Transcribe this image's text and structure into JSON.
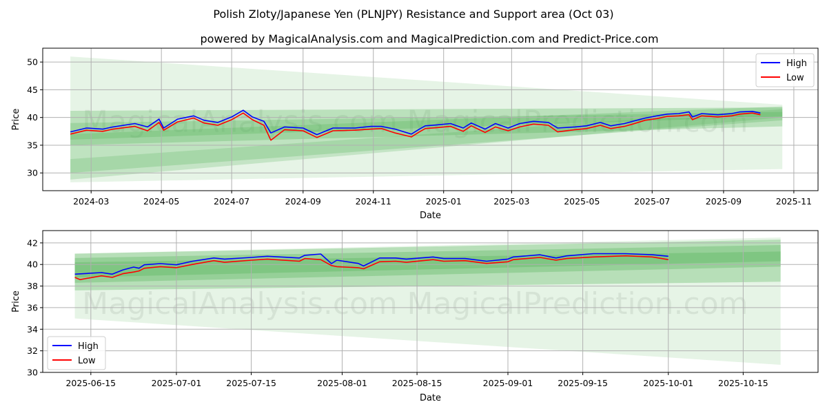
{
  "title": "Polish Zloty/Japanese Yen (PLNJPY) Resistance and Support area (Oct 03)",
  "subtitle": "powered by MagicalAnalysis.com and MagicalPrediction.com and Predict-Price.com",
  "colors": {
    "high": "#0000ff",
    "low": "#ff0000",
    "band": "#4caf50",
    "grid": "#b0b0b0"
  },
  "chart_data": [
    {
      "type": "line",
      "xlabel": "Date",
      "ylabel": "Price",
      "ylim": [
        26.8,
        52.5
      ],
      "xlim": [
        "2024-01-19",
        "2025-11-22"
      ],
      "yticks": [
        30,
        35,
        40,
        45,
        50
      ],
      "xticks": [
        "2024-03",
        "2024-05",
        "2024-07",
        "2024-09",
        "2024-11",
        "2025-01",
        "2025-03",
        "2025-05",
        "2025-07",
        "2025-09",
        "2025-11"
      ],
      "grid": true,
      "legend": {
        "placement": "top-right",
        "entries": [
          "High",
          "Low"
        ]
      },
      "watermarks": [
        "MagicalAnalysis.com",
        "MagicalPrediction.com"
      ],
      "series": [
        {
          "name": "High",
          "x": [
            "2024-02-12",
            "2024-02-26",
            "2024-03-11",
            "2024-03-20",
            "2024-04-08",
            "2024-04-19",
            "2024-04-29",
            "2024-05-03",
            "2024-05-15",
            "2024-05-29",
            "2024-06-07",
            "2024-06-19",
            "2024-07-01",
            "2024-07-11",
            "2024-07-19",
            "2024-07-29",
            "2024-08-04",
            "2024-08-16",
            "2024-09-01",
            "2024-09-13",
            "2024-09-27",
            "2024-10-16",
            "2024-10-30",
            "2024-11-08",
            "2024-11-20",
            "2024-12-04",
            "2024-12-11",
            "2024-12-16",
            "2024-12-28",
            "2025-01-07",
            "2025-01-18",
            "2025-01-25",
            "2025-02-06",
            "2025-02-15",
            "2025-02-26",
            "2025-03-08",
            "2025-03-20",
            "2025-04-02",
            "2025-04-10",
            "2025-04-25",
            "2025-05-05",
            "2025-05-17",
            "2025-05-26",
            "2025-06-07",
            "2025-06-14",
            "2025-06-25",
            "2025-07-05",
            "2025-07-14",
            "2025-07-24",
            "2025-08-02",
            "2025-08-05",
            "2025-08-13",
            "2025-08-27",
            "2025-09-08",
            "2025-09-15",
            "2025-09-26",
            "2025-10-03"
          ],
          "values": [
            37.4,
            38.1,
            37.9,
            38.3,
            38.9,
            38.3,
            39.7,
            38.1,
            39.7,
            40.3,
            39.5,
            39.1,
            40.1,
            41.3,
            40.1,
            39.3,
            37.2,
            38.3,
            38.1,
            36.9,
            38.1,
            38.1,
            38.4,
            38.4,
            37.9,
            37.0,
            37.9,
            38.5,
            38.7,
            38.9,
            38.1,
            39.0,
            37.9,
            38.9,
            38.1,
            38.9,
            39.3,
            39.1,
            38.1,
            38.3,
            38.5,
            39.1,
            38.5,
            38.9,
            39.3,
            39.9,
            40.3,
            40.6,
            40.7,
            41.0,
            40.1,
            40.7,
            40.5,
            40.7,
            41.0,
            41.1,
            40.8
          ]
        },
        {
          "name": "Low",
          "x": [
            "2024-02-12",
            "2024-02-26",
            "2024-03-11",
            "2024-03-20",
            "2024-04-08",
            "2024-04-19",
            "2024-04-29",
            "2024-05-03",
            "2024-05-15",
            "2024-05-29",
            "2024-06-07",
            "2024-06-19",
            "2024-07-01",
            "2024-07-11",
            "2024-07-19",
            "2024-07-29",
            "2024-08-04",
            "2024-08-16",
            "2024-09-01",
            "2024-09-13",
            "2024-09-27",
            "2024-10-16",
            "2024-10-30",
            "2024-11-08",
            "2024-11-20",
            "2024-12-04",
            "2024-12-11",
            "2024-12-16",
            "2024-12-28",
            "2025-01-07",
            "2025-01-18",
            "2025-01-25",
            "2025-02-06",
            "2025-02-15",
            "2025-02-26",
            "2025-03-08",
            "2025-03-20",
            "2025-04-02",
            "2025-04-10",
            "2025-04-25",
            "2025-05-05",
            "2025-05-17",
            "2025-05-26",
            "2025-06-07",
            "2025-06-14",
            "2025-06-25",
            "2025-07-05",
            "2025-07-14",
            "2025-07-24",
            "2025-08-02",
            "2025-08-05",
            "2025-08-13",
            "2025-08-27",
            "2025-09-08",
            "2025-09-15",
            "2025-09-26",
            "2025-10-03"
          ],
          "values": [
            37.0,
            37.7,
            37.5,
            37.9,
            38.4,
            37.6,
            39.1,
            37.7,
            39.2,
            39.9,
            39.0,
            38.6,
            39.6,
            40.8,
            39.6,
            38.6,
            35.9,
            37.8,
            37.6,
            36.4,
            37.6,
            37.7,
            37.9,
            38.0,
            37.2,
            36.5,
            37.4,
            38.0,
            38.2,
            38.4,
            37.5,
            38.5,
            37.3,
            38.3,
            37.6,
            38.3,
            38.8,
            38.6,
            37.4,
            37.8,
            38.0,
            38.6,
            38.0,
            38.4,
            38.8,
            39.5,
            39.8,
            40.2,
            40.3,
            40.5,
            39.6,
            40.3,
            40.1,
            40.3,
            40.6,
            40.8,
            40.5
          ]
        }
      ],
      "bands": [
        {
          "x": [
            "2024-02-12",
            "2025-10-22"
          ],
          "start": [
            28.3,
            51.0
          ],
          "end": [
            30.7,
            42.3
          ],
          "alpha": 0.14
        },
        {
          "x": [
            "2024-02-12",
            "2025-10-22"
          ],
          "start": [
            35.0,
            41.2
          ],
          "end": [
            38.4,
            41.8
          ],
          "alpha": 0.28
        },
        {
          "x": [
            "2024-02-12",
            "2025-10-22"
          ],
          "start": [
            30.0,
            37.0
          ],
          "end": [
            39.5,
            42.0
          ],
          "alpha": 0.25
        },
        {
          "x": [
            "2024-02-12",
            "2025-10-22"
          ],
          "start": [
            28.8,
            32.5
          ],
          "end": [
            40.0,
            41.5
          ],
          "alpha": 0.22
        },
        {
          "x": [
            "2024-02-12",
            "2025-10-22"
          ],
          "start": [
            36.0,
            39.0
          ],
          "end": [
            40.2,
            41.0
          ],
          "alpha": 0.25
        }
      ]
    },
    {
      "type": "line",
      "xlabel": "Date",
      "ylabel": "Price",
      "ylim": [
        30,
        43.14
      ],
      "xlim": [
        "2025-06-06",
        "2025-10-29"
      ],
      "yticks": [
        30,
        32,
        34,
        36,
        38,
        40,
        42
      ],
      "xticks": [
        "2025-06-15",
        "2025-07-01",
        "2025-07-15",
        "2025-08-01",
        "2025-08-15",
        "2025-09-01",
        "2025-09-15",
        "2025-10-01",
        "2025-10-15"
      ],
      "grid": true,
      "legend": {
        "placement": "bottom-left",
        "entries": [
          "High",
          "Low"
        ]
      },
      "watermarks": [
        "MagicalAnalysis.com",
        "MagicalPrediction.com"
      ],
      "series": [
        {
          "name": "High",
          "x": [
            "2025-06-12",
            "2025-06-17",
            "2025-06-19",
            "2025-06-21",
            "2025-06-23",
            "2025-06-24",
            "2025-06-25",
            "2025-06-28",
            "2025-07-01",
            "2025-07-04",
            "2025-07-08",
            "2025-07-10",
            "2025-07-15",
            "2025-07-18",
            "2025-07-24",
            "2025-07-25",
            "2025-07-28",
            "2025-07-30",
            "2025-07-31",
            "2025-08-04",
            "2025-08-05",
            "2025-08-08",
            "2025-08-11",
            "2025-08-13",
            "2025-08-18",
            "2025-08-20",
            "2025-08-24",
            "2025-08-28",
            "2025-09-01",
            "2025-09-02",
            "2025-09-07",
            "2025-09-10",
            "2025-09-12",
            "2025-09-17",
            "2025-09-23",
            "2025-09-28",
            "2025-10-01"
          ],
          "values": [
            39.1,
            39.25,
            39.1,
            39.5,
            39.76,
            39.65,
            39.97,
            40.08,
            39.97,
            40.3,
            40.6,
            40.5,
            40.65,
            40.76,
            40.6,
            40.85,
            40.97,
            40.08,
            40.4,
            40.1,
            39.86,
            40.6,
            40.6,
            40.5,
            40.7,
            40.55,
            40.55,
            40.3,
            40.5,
            40.7,
            40.9,
            40.6,
            40.8,
            41.0,
            41.0,
            40.9,
            40.76
          ]
        },
        {
          "name": "Low",
          "x": [
            "2025-06-12",
            "2025-06-13",
            "2025-06-17",
            "2025-06-19",
            "2025-06-21",
            "2025-06-23",
            "2025-06-24",
            "2025-06-25",
            "2025-06-28",
            "2025-07-01",
            "2025-07-04",
            "2025-07-08",
            "2025-07-10",
            "2025-07-15",
            "2025-07-18",
            "2025-07-24",
            "2025-07-25",
            "2025-07-28",
            "2025-07-30",
            "2025-07-31",
            "2025-08-04",
            "2025-08-05",
            "2025-08-08",
            "2025-08-11",
            "2025-08-13",
            "2025-08-18",
            "2025-08-20",
            "2025-08-24",
            "2025-08-28",
            "2025-09-01",
            "2025-09-02",
            "2025-09-07",
            "2025-09-10",
            "2025-09-12",
            "2025-09-17",
            "2025-09-23",
            "2025-09-28",
            "2025-10-01"
          ],
          "values": [
            38.8,
            38.6,
            38.95,
            38.8,
            39.15,
            39.3,
            39.4,
            39.65,
            39.8,
            39.7,
            40.0,
            40.35,
            40.2,
            40.4,
            40.5,
            40.3,
            40.55,
            40.45,
            39.9,
            39.8,
            39.7,
            39.6,
            40.25,
            40.3,
            40.2,
            40.45,
            40.3,
            40.35,
            40.1,
            40.25,
            40.45,
            40.65,
            40.4,
            40.55,
            40.7,
            40.8,
            40.7,
            40.45
          ]
        }
      ],
      "bands": [
        {
          "x": [
            "2025-06-12",
            "2025-10-22"
          ],
          "start": [
            35.0,
            41.0
          ],
          "end": [
            30.7,
            42.5
          ],
          "alpha": 0.14
        },
        {
          "x": [
            "2025-06-12",
            "2025-10-22"
          ],
          "start": [
            37.6,
            41.0
          ],
          "end": [
            38.4,
            42.3
          ],
          "alpha": 0.3
        },
        {
          "x": [
            "2025-06-12",
            "2025-10-22"
          ],
          "start": [
            38.3,
            40.6
          ],
          "end": [
            39.8,
            41.8
          ],
          "alpha": 0.3
        },
        {
          "x": [
            "2025-06-12",
            "2025-10-22"
          ],
          "start": [
            38.8,
            40.2
          ],
          "end": [
            40.3,
            41.2
          ],
          "alpha": 0.3
        }
      ]
    }
  ]
}
